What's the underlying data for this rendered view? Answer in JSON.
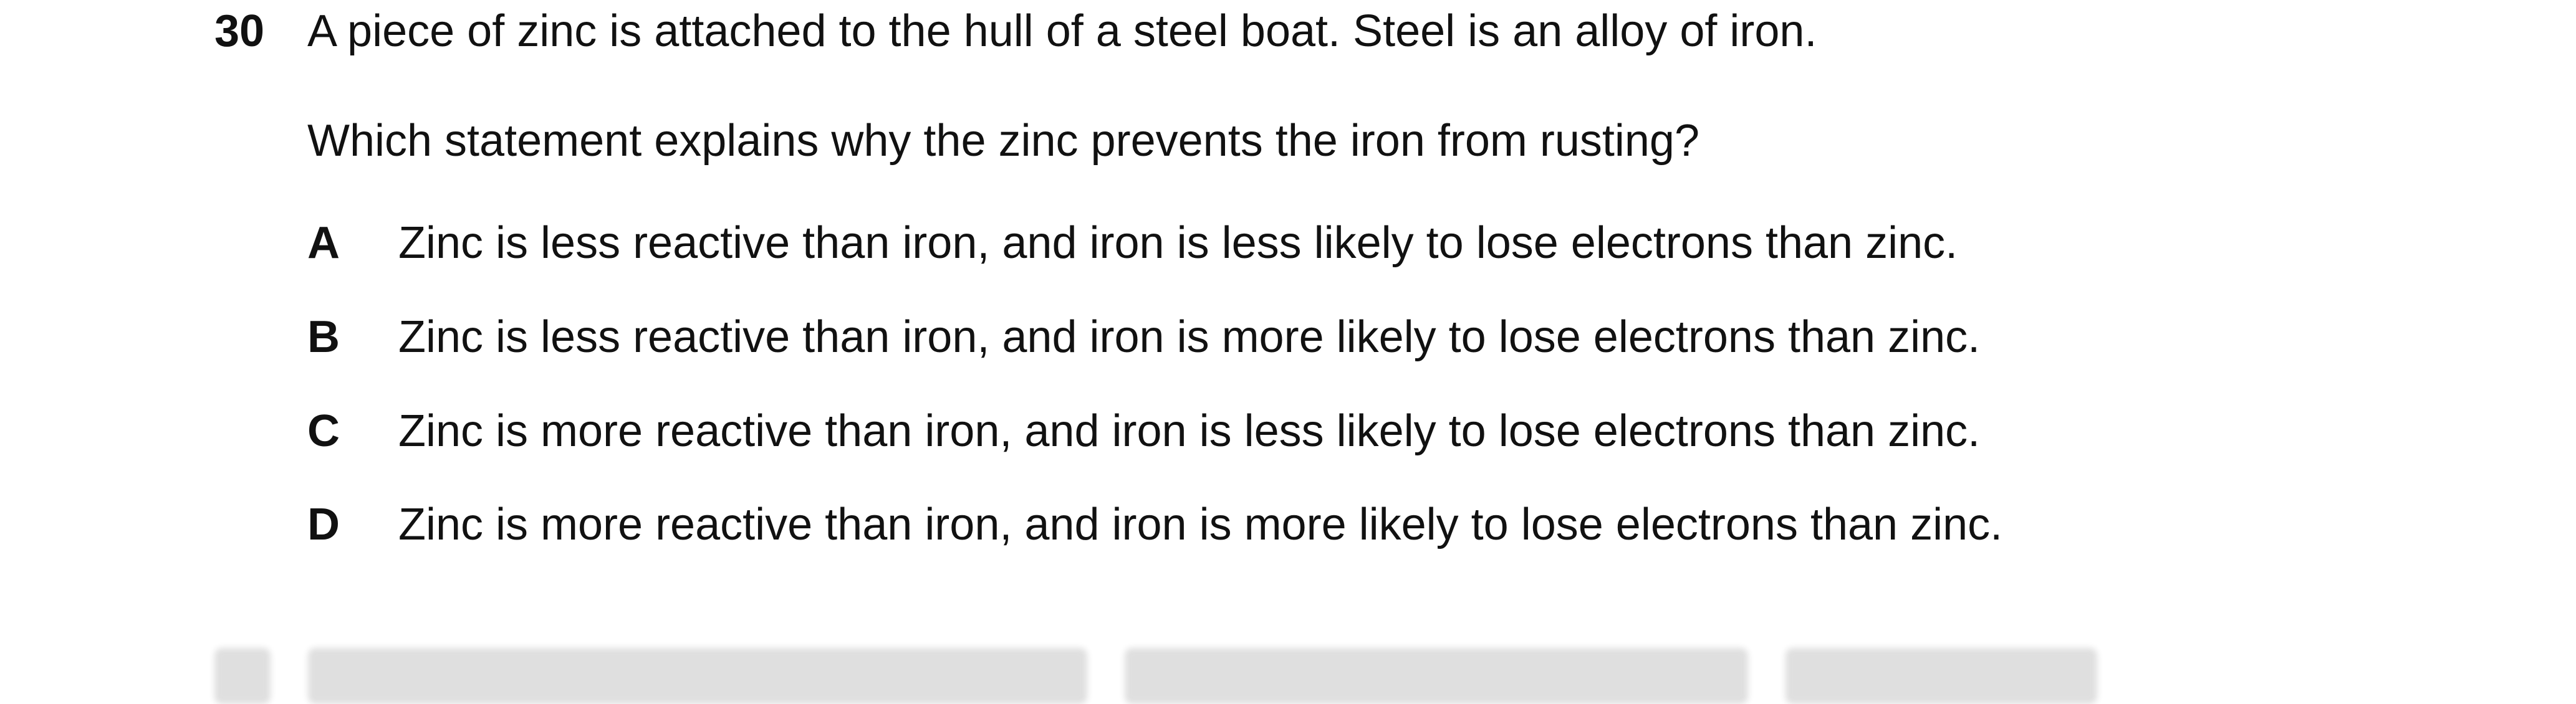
{
  "question": {
    "number": "30",
    "stem_line_1": "A piece of zinc is attached to the hull of a steel boat. Steel is an alloy of iron.",
    "stem_line_2": "Which statement explains why the zinc prevents the iron from rusting?"
  },
  "options": [
    {
      "letter": "A",
      "text": "Zinc is less reactive than iron, and iron is less likely to lose electrons than zinc."
    },
    {
      "letter": "B",
      "text": "Zinc is less reactive than iron, and iron is more likely to lose electrons than zinc."
    },
    {
      "letter": "C",
      "text": "Zinc is more reactive than iron, and iron is less likely to lose electrons than zinc."
    },
    {
      "letter": "D",
      "text": "Zinc is more reactive than iron, and iron is more likely to lose electrons than zinc."
    }
  ]
}
